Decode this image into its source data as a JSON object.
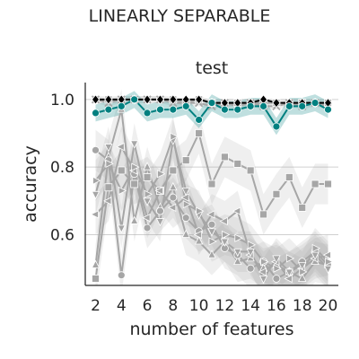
{
  "chart_data": {
    "type": "line",
    "suptitle": "LINEARLY SEPARABLE",
    "title": "test",
    "xlabel": "number of features",
    "ylabel": "accuracy",
    "xlim": [
      1.2,
      20.8
    ],
    "ylim": [
      0.45,
      1.05
    ],
    "xticks": [
      2,
      4,
      6,
      8,
      10,
      12,
      14,
      16,
      18,
      20
    ],
    "yticks": [
      0.6,
      0.8,
      1.0
    ],
    "ytick_labels": [
      "0.6",
      "0.8",
      "1.0"
    ],
    "grid": "horizontal",
    "x": [
      2,
      3,
      4,
      5,
      6,
      7,
      8,
      9,
      10,
      11,
      12,
      13,
      14,
      15,
      16,
      17,
      18,
      19,
      20
    ],
    "series": [
      {
        "color": "#a6a6a6",
        "marker": "triangle-up",
        "band": 0.06,
        "values": [
          0.51,
          0.83,
          0.97,
          0.64,
          0.8,
          0.68,
          0.74,
          0.6,
          0.58,
          0.54,
          0.58,
          0.52,
          0.53,
          0.5,
          0.51,
          0.49,
          0.47,
          0.52,
          0.51
        ]
      },
      {
        "color": "#a6a6a6",
        "marker": "circle",
        "band": 0.06,
        "values": [
          0.85,
          0.82,
          0.48,
          0.78,
          0.62,
          0.67,
          0.71,
          0.65,
          0.61,
          0.63,
          0.56,
          0.54,
          0.5,
          0.52,
          0.47,
          0.49,
          0.52,
          0.55,
          0.51
        ]
      },
      {
        "color": "#a6a6a6",
        "marker": "square",
        "band": 0.06,
        "values": [
          0.47,
          0.74,
          0.79,
          0.75,
          0.77,
          0.73,
          0.79,
          0.82,
          0.9,
          0.75,
          0.83,
          0.81,
          0.79,
          0.66,
          0.72,
          0.77,
          0.68,
          0.75,
          0.75
        ]
      },
      {
        "color": "#a6a6a6",
        "marker": "triangle-left",
        "band": 0.06,
        "values": [
          0.66,
          0.7,
          0.86,
          0.79,
          0.65,
          0.73,
          0.68,
          0.71,
          0.6,
          0.66,
          0.64,
          0.67,
          0.54,
          0.49,
          0.52,
          0.47,
          0.5,
          0.53,
          0.54
        ]
      },
      {
        "color": "#a6a6a6",
        "marker": "triangle-down",
        "band": 0.06,
        "values": [
          0.72,
          0.86,
          0.62,
          0.87,
          0.7,
          0.64,
          0.88,
          0.73,
          0.66,
          0.61,
          0.58,
          0.55,
          0.55,
          0.47,
          0.53,
          0.49,
          0.51,
          0.54,
          0.5
        ]
      },
      {
        "color": "#a6a6a6",
        "marker": "triangle-right",
        "band": 0.06,
        "values": [
          0.76,
          0.81,
          0.73,
          0.8,
          0.72,
          0.78,
          0.89,
          0.69,
          0.67,
          0.58,
          0.6,
          0.59,
          0.57,
          0.52,
          0.5,
          0.53,
          0.49,
          0.56,
          0.52
        ]
      },
      {
        "color": "#a6a6a6",
        "marker": "square",
        "band": 0.01,
        "values": [
          1.0,
          1.0,
          1.0,
          1.0,
          1.0,
          1.0,
          1.0,
          0.99,
          1.0,
          0.99,
          0.99,
          0.99,
          0.99,
          0.99,
          0.99,
          0.99,
          0.99,
          0.99,
          0.99
        ]
      },
      {
        "color": "#a6a6a6",
        "marker": "x",
        "band": 0.01,
        "values": [
          1.0,
          0.99,
          1.0,
          1.0,
          1.0,
          1.0,
          0.99,
          0.99,
          0.99,
          0.98,
          0.99,
          0.98,
          0.99,
          0.98,
          0.98,
          0.99,
          0.98,
          0.99,
          0.98
        ]
      },
      {
        "color": "#000000",
        "marker": "diamond",
        "band": 0.0,
        "values": [
          1.0,
          1.0,
          1.0,
          1.0,
          1.0,
          1.0,
          1.0,
          1.0,
          1.0,
          0.99,
          0.99,
          0.99,
          0.99,
          1.0,
          0.99,
          0.99,
          0.99,
          0.99,
          0.99
        ]
      },
      {
        "color": "#008080",
        "marker": "circle",
        "band": 0.025,
        "values": [
          0.96,
          0.97,
          0.98,
          1.0,
          0.96,
          0.97,
          0.97,
          0.98,
          0.94,
          0.99,
          0.97,
          0.97,
          0.98,
          0.98,
          0.92,
          0.98,
          0.98,
          0.99,
          0.97
        ]
      }
    ]
  }
}
